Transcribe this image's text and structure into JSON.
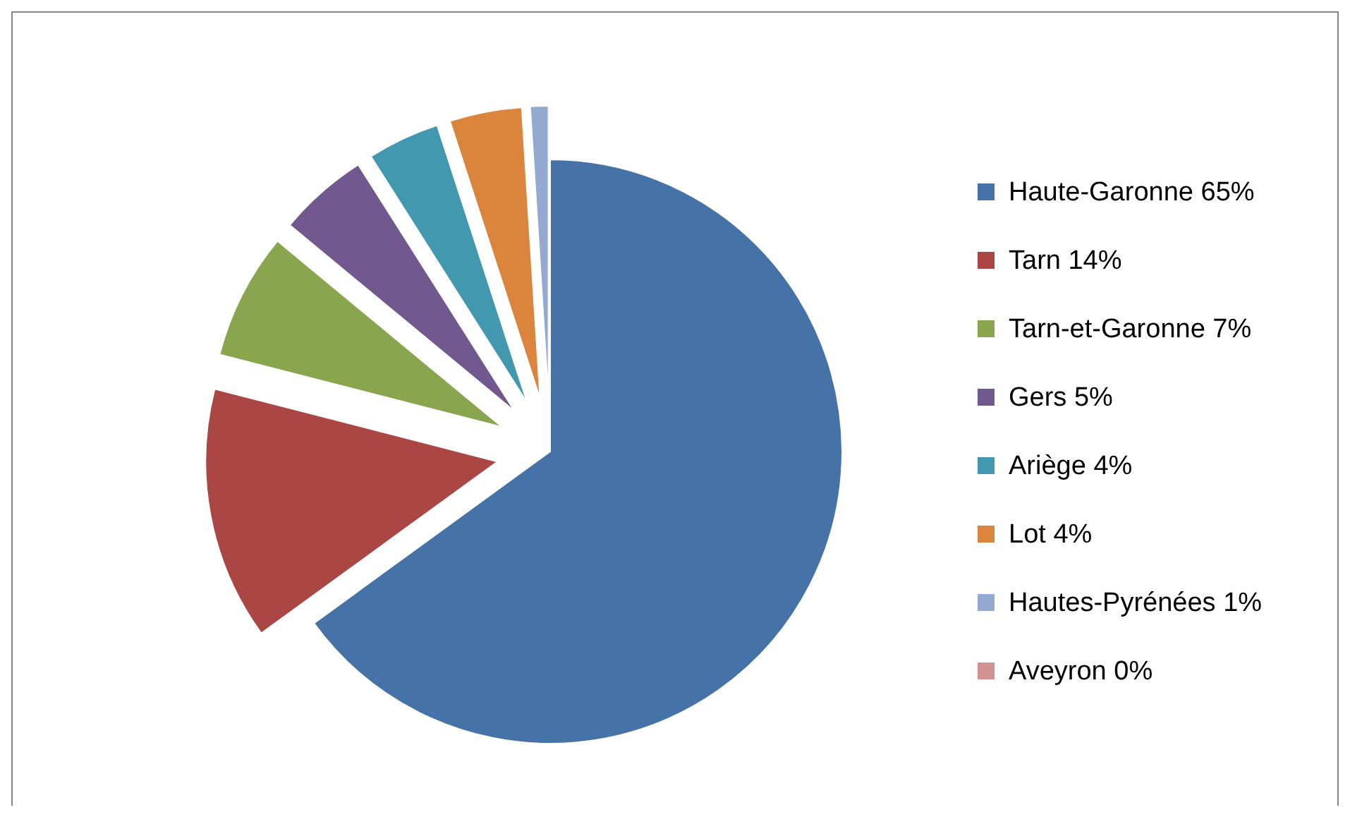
{
  "chart_data": {
    "type": "pie",
    "categories": [
      "Haute-Garonne 65%",
      "Tarn 14%",
      "Tarn-et-Garonne 7%",
      "Gers 5%",
      "Ariège 4%",
      "Lot 4%",
      "Hautes-Pyrénées 1%",
      "Aveyron 0%"
    ],
    "values": [
      65,
      14,
      7,
      5,
      4,
      4,
      1,
      0
    ],
    "colors": [
      "#4572a7",
      "#aa4643",
      "#89a54e",
      "#71588f",
      "#4198af",
      "#db843d",
      "#93a9cf",
      "#d19392"
    ],
    "legend": "right"
  }
}
